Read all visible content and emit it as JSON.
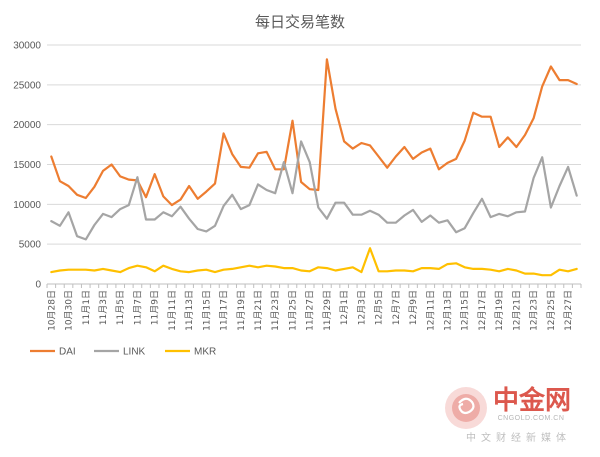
{
  "chart_data": {
    "type": "line",
    "title": "每日交易笔数",
    "xlabel": "",
    "ylabel": "",
    "ylim": [
      0,
      30000
    ],
    "yticks": [
      0,
      5000,
      10000,
      15000,
      20000,
      25000,
      30000
    ],
    "grid": true,
    "legend_position": "bottom-left",
    "categories": [
      "10月28日",
      "10月29日",
      "10月30日",
      "10月31日",
      "11月1日",
      "11月2日",
      "11月3日",
      "11月4日",
      "11月5日",
      "11月6日",
      "11月7日",
      "11月8日",
      "11月9日",
      "11月10日",
      "11月11日",
      "11月12日",
      "11月13日",
      "11月14日",
      "11月15日",
      "11月16日",
      "11月17日",
      "11月18日",
      "11月19日",
      "11月20日",
      "11月21日",
      "11月22日",
      "11月23日",
      "11月24日",
      "11月25日",
      "11月26日",
      "11月27日",
      "11月28日",
      "11月29日",
      "11月30日",
      "12月1日",
      "12月2日",
      "12月3日",
      "12月4日",
      "12月5日",
      "12月6日",
      "12月7日",
      "12月8日",
      "12月9日",
      "12月10日",
      "12月11日",
      "12月12日",
      "12月13日",
      "12月14日",
      "12月15日",
      "12月16日",
      "12月17日",
      "12月18日",
      "12月19日",
      "12月20日",
      "12月21日",
      "12月22日",
      "12月23日",
      "12月24日",
      "12月25日",
      "12月26日",
      "12月27日",
      "12月28日"
    ],
    "xtick_labels": [
      "10月28日",
      "10月30日",
      "11月1日",
      "11月3日",
      "11月5日",
      "11月7日",
      "11月9日",
      "11月11日",
      "11月13日",
      "11月15日",
      "11月17日",
      "11月19日",
      "11月21日",
      "11月23日",
      "11月25日",
      "11月27日",
      "11月29日",
      "12月1日",
      "12月3日",
      "12月5日",
      "12月7日",
      "12月9日",
      "12月11日",
      "12月13日",
      "12月15日",
      "12月17日",
      "12月19日",
      "12月21日",
      "12月23日",
      "12月25日",
      "12月27日"
    ],
    "series": [
      {
        "name": "DAI",
        "color": "#ED7D31",
        "values": [
          16000,
          12900,
          12300,
          11200,
          10800,
          12200,
          14200,
          15000,
          13500,
          13100,
          13000,
          10900,
          13800,
          11000,
          9900,
          10600,
          12300,
          10700,
          11600,
          12600,
          18900,
          16300,
          14700,
          14600,
          16400,
          16600,
          14400,
          14400,
          20500,
          12800,
          11900,
          11800,
          28200,
          22000,
          17900,
          17000,
          17700,
          17400,
          16000,
          14600,
          16000,
          17200,
          15700,
          16500,
          17000,
          14400,
          15200,
          15700,
          18000,
          21500,
          21000,
          21000,
          17200,
          18400,
          17200,
          18700,
          20800,
          24800,
          27300,
          25600,
          25600,
          25100
        ]
      },
      {
        "name": "LINK",
        "color": "#A5A5A5",
        "values": [
          7900,
          7300,
          9000,
          6000,
          5600,
          7400,
          8800,
          8400,
          9400,
          9900,
          13400,
          8100,
          8100,
          9000,
          8500,
          9700,
          8200,
          6900,
          6600,
          7300,
          9800,
          11200,
          9400,
          9900,
          12500,
          11800,
          11400,
          15300,
          11400,
          17900,
          15300,
          9600,
          8200,
          10200,
          10200,
          8700,
          8700,
          9200,
          8700,
          7700,
          7700,
          8600,
          9300,
          7800,
          8600,
          7700,
          8000,
          6500,
          7000,
          8900,
          10700,
          8400,
          8800,
          8500,
          9000,
          9100,
          13300,
          15900,
          9600,
          12300,
          14700,
          11100
        ]
      },
      {
        "name": "MKR",
        "color": "#FFC000",
        "values": [
          1500,
          1700,
          1800,
          1800,
          1800,
          1700,
          1900,
          1700,
          1500,
          2000,
          2300,
          2100,
          1600,
          2300,
          1900,
          1600,
          1500,
          1700,
          1800,
          1500,
          1800,
          1900,
          2100,
          2300,
          2100,
          2300,
          2200,
          2000,
          2000,
          1700,
          1600,
          2100,
          2000,
          1700,
          1900,
          2100,
          1500,
          4500,
          1600,
          1600,
          1700,
          1700,
          1600,
          2000,
          2000,
          1900,
          2500,
          2600,
          2100,
          1900,
          1900,
          1800,
          1600,
          1900,
          1700,
          1300,
          1300,
          1100,
          1100,
          1800,
          1600,
          1900
        ]
      }
    ]
  },
  "watermark": {
    "brand": "中金网",
    "url": "CNGOLD.COM.CN",
    "tagline": "中文财经新媒体",
    "logo_color": "#d9463a"
  }
}
